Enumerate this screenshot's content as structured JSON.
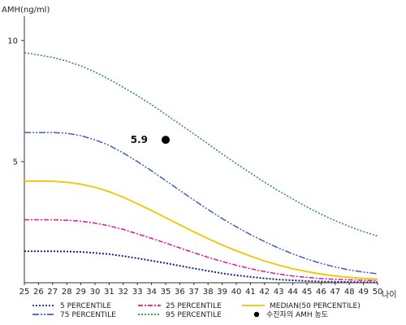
{
  "chart_data": {
    "type": "line",
    "ylabel": "AMH(ng/ml)",
    "xlabel": "나이",
    "x": [
      25,
      26,
      27,
      28,
      29,
      30,
      31,
      32,
      33,
      34,
      35,
      36,
      37,
      38,
      39,
      40,
      41,
      42,
      43,
      44,
      45,
      46,
      47,
      48,
      49,
      50
    ],
    "x_ticks": [
      "25",
      "26",
      "27",
      "28",
      "29",
      "30",
      "31",
      "32",
      "33",
      "34",
      "35",
      "36",
      "37",
      "38",
      "39",
      "40",
      "41",
      "42",
      "43",
      "44",
      "45",
      "46",
      "47",
      "48",
      "49",
      "50"
    ],
    "y_ticks": [
      "5",
      "10"
    ],
    "y_tick_values": [
      5,
      10
    ],
    "xlim": [
      25,
      50
    ],
    "ylim": [
      0,
      11
    ],
    "grid": false,
    "legend_position": "bottom",
    "series": [
      {
        "name": "5 PERCENTILE",
        "color": "#1a237e",
        "dash": "2,2",
        "values": [
          1.3,
          1.3,
          1.3,
          1.29,
          1.27,
          1.23,
          1.18,
          1.1,
          1.01,
          0.91,
          0.81,
          0.7,
          0.59,
          0.49,
          0.39,
          0.31,
          0.24,
          0.18,
          0.13,
          0.1,
          0.07,
          0.05,
          0.04,
          0.03,
          0.02,
          0.02
        ]
      },
      {
        "name": "25 PERCENTILE",
        "color": "#e0168a",
        "dash": "6,2,2,2",
        "values": [
          2.6,
          2.6,
          2.6,
          2.58,
          2.54,
          2.46,
          2.35,
          2.2,
          2.02,
          1.83,
          1.64,
          1.44,
          1.24,
          1.05,
          0.88,
          0.72,
          0.58,
          0.46,
          0.36,
          0.28,
          0.22,
          0.17,
          0.14,
          0.12,
          0.1,
          0.09
        ]
      },
      {
        "name": "MEDIAN(50 PERCENTILE)",
        "color": "#f2c500",
        "dash": "",
        "values": [
          4.2,
          4.2,
          4.19,
          4.15,
          4.07,
          3.94,
          3.76,
          3.53,
          3.26,
          2.98,
          2.69,
          2.39,
          2.1,
          1.82,
          1.56,
          1.32,
          1.1,
          0.9,
          0.73,
          0.58,
          0.46,
          0.36,
          0.28,
          0.22,
          0.18,
          0.15
        ]
      },
      {
        "name": "75 PERCENTILE",
        "color": "#3f5fbf",
        "dash": "8,2,2,2,2,2",
        "values": [
          6.2,
          6.2,
          6.2,
          6.17,
          6.07,
          5.9,
          5.67,
          5.36,
          5.0,
          4.62,
          4.22,
          3.81,
          3.41,
          3.02,
          2.65,
          2.31,
          1.99,
          1.7,
          1.43,
          1.19,
          0.98,
          0.8,
          0.65,
          0.53,
          0.44,
          0.37
        ]
      },
      {
        "name": "95 PERCENTILE",
        "color": "#2e8b57",
        "dash": "2,2",
        "values": [
          9.5,
          9.4,
          9.3,
          9.15,
          8.95,
          8.7,
          8.4,
          8.07,
          7.72,
          7.35,
          6.95,
          6.55,
          6.14,
          5.73,
          5.32,
          4.92,
          4.53,
          4.15,
          3.79,
          3.45,
          3.13,
          2.83,
          2.56,
          2.32,
          2.11,
          1.93
        ]
      }
    ],
    "annotations": [
      {
        "label": "5.9",
        "x": 35,
        "y": 5.9,
        "name": "수진자의 AMH 농도"
      }
    ],
    "legend": [
      {
        "label": "5 PERCENTILE",
        "series": 0
      },
      {
        "label": "25 PERCENTILE",
        "series": 1
      },
      {
        "label": "MEDIAN(50 PERCENTILE)",
        "series": 2
      },
      {
        "label": "75 PERCENTILE",
        "series": 3
      },
      {
        "label": "95 PERCENTILE",
        "series": 4
      },
      {
        "label": "수진자의 AMH 농도",
        "marker": true
      }
    ]
  }
}
